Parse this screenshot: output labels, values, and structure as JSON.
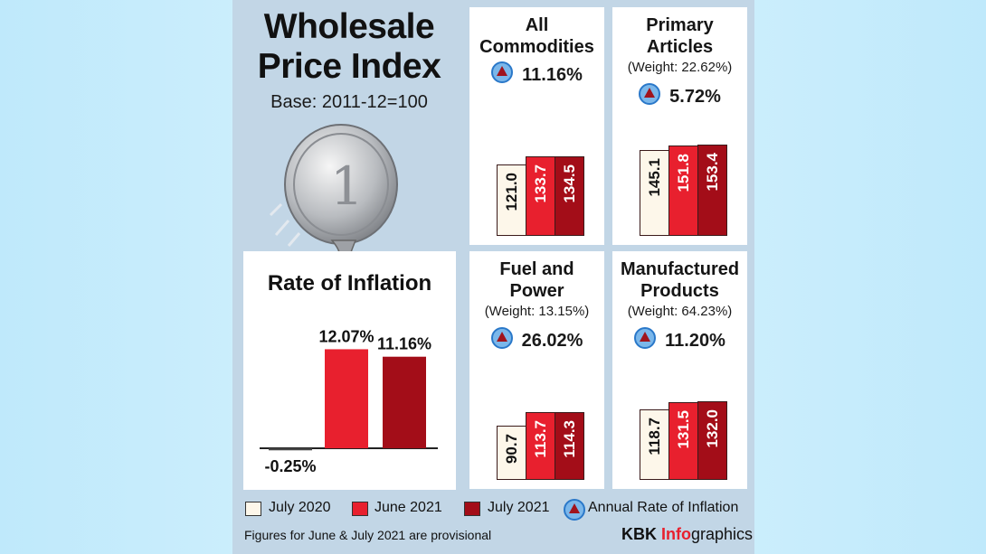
{
  "header": {
    "title_line1": "Wholesale",
    "title_line2": "Price Index",
    "base": "Base: 2011-12=100"
  },
  "inflation_panel": {
    "title": "Rate of Inflation"
  },
  "colors": {
    "july_2020": "#fdf7ea",
    "june_2021": "#e8202e",
    "july_2021": "#a30d18",
    "annual_rate_icon": "#7bb7ea"
  },
  "chart_data": [
    {
      "type": "bar",
      "title": "Rate of Inflation",
      "categories": [
        "July 2020",
        "June 2021",
        "July 2021"
      ],
      "values": [
        -0.25,
        12.07,
        11.16
      ],
      "labels": [
        "-0.25%",
        "12.07%",
        "11.16%"
      ],
      "ylim": [
        -1,
        13
      ]
    },
    {
      "type": "bar",
      "title": "All\nCommodities",
      "weight": "",
      "rate": "11.16%",
      "categories": [
        "July 2020",
        "June 2021",
        "July 2021"
      ],
      "values": [
        121.0,
        133.7,
        134.5
      ],
      "labels": [
        "121.0",
        "133.7",
        "134.5"
      ]
    },
    {
      "type": "bar",
      "title": "Primary\nArticles",
      "weight": "(Weight: 22.62%)",
      "rate": "5.72%",
      "categories": [
        "July 2020",
        "June 2021",
        "July 2021"
      ],
      "values": [
        145.1,
        151.8,
        153.4
      ],
      "labels": [
        "145.1",
        "151.8",
        "153.4"
      ]
    },
    {
      "type": "bar",
      "title": "Fuel and\nPower",
      "weight": "(Weight: 13.15%)",
      "rate": "26.02%",
      "categories": [
        "July 2020",
        "June 2021",
        "July 2021"
      ],
      "values": [
        90.7,
        113.7,
        114.3
      ],
      "labels": [
        "90.7",
        "113.7",
        "114.3"
      ]
    },
    {
      "type": "bar",
      "title": "Manufactured\nProducts",
      "weight": "(Weight: 64.23%)",
      "rate": "11.20%",
      "categories": [
        "July 2020",
        "June 2021",
        "July 2021"
      ],
      "values": [
        118.7,
        131.5,
        132.0
      ],
      "labels": [
        "118.7",
        "131.5",
        "132.0"
      ]
    }
  ],
  "legend": {
    "items": [
      "July 2020",
      "June 2021",
      "July 2021",
      "Annual Rate of Inflation"
    ]
  },
  "footer": {
    "note": "Figures for June & July 2021 are provisional",
    "credit_a": "KBK ",
    "credit_b": "Info",
    "credit_c": "graphics"
  }
}
